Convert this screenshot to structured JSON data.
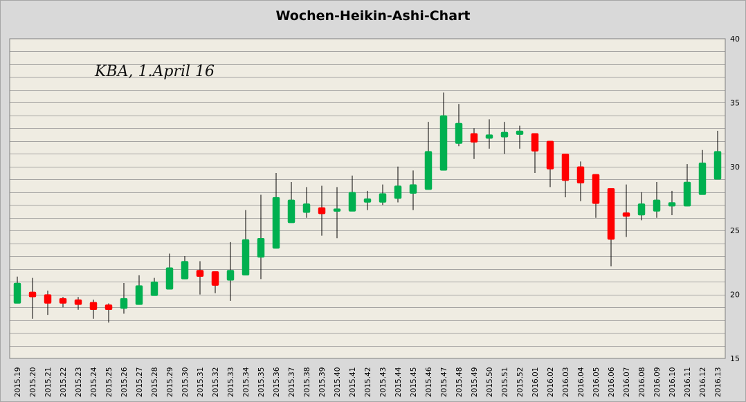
{
  "chart_data": {
    "type": "candlestick",
    "title": "Wochen-Heikin-Ashi-Chart",
    "annotation": "KBA, 1.April 16",
    "ylim": [
      15,
      40
    ],
    "y_ticks": [
      15,
      20,
      25,
      30,
      35,
      40
    ],
    "y_axis_side": "right",
    "grid": true,
    "colors": {
      "up": "#00b050",
      "down": "#ff0000",
      "plot_bg": "#efece2",
      "outer_bg": "#d9d9d9",
      "grid": "#8c8c8c"
    },
    "tick_labels": [
      "2015.19",
      "2015.20",
      "2015.21",
      "2015.22",
      "2015.23",
      "2015.24",
      "2015.25",
      "2015.26",
      "2015.27",
      "2015.28",
      "2015.29",
      "2015.30",
      "2015.31",
      "2015.32",
      "2015.33",
      "2015.34",
      "2015.35",
      "2015.36",
      "2015.37",
      "2015.38",
      "2015.39",
      "2015.40",
      "2015.41",
      "2015.42",
      "2015.43",
      "2015.44",
      "2015.45",
      "2015.46",
      "2015.47",
      "2015.48",
      "2015.49",
      "2015.50",
      "2015.51",
      "2015.52",
      "2016.01",
      "2016.02",
      "2016.03",
      "2016.04",
      "2016.05",
      "2016.06",
      "2016.07",
      "2016.08",
      "2016.09",
      "2016.10",
      "2016.11",
      "2016.12",
      "2016.13"
    ],
    "candles": [
      {
        "open": 19.3,
        "close": 20.9,
        "high": 21.4,
        "low": 19.3
      },
      {
        "open": 20.2,
        "close": 19.8,
        "high": 21.3,
        "low": 18.1
      },
      {
        "open": 20.0,
        "close": 19.3,
        "high": 20.3,
        "low": 18.4
      },
      {
        "open": 19.7,
        "close": 19.3,
        "high": 19.8,
        "low": 19.0
      },
      {
        "open": 19.6,
        "close": 19.2,
        "high": 19.8,
        "low": 18.8
      },
      {
        "open": 19.4,
        "close": 18.8,
        "high": 19.6,
        "low": 18.1
      },
      {
        "open": 19.2,
        "close": 18.8,
        "high": 19.3,
        "low": 17.8
      },
      {
        "open": 18.9,
        "close": 19.7,
        "high": 20.9,
        "low": 18.5
      },
      {
        "open": 19.2,
        "close": 20.7,
        "high": 21.5,
        "low": 19.2
      },
      {
        "open": 19.9,
        "close": 21.0,
        "high": 21.3,
        "low": 19.9
      },
      {
        "open": 20.4,
        "close": 22.1,
        "high": 23.2,
        "low": 20.4
      },
      {
        "open": 21.2,
        "close": 22.6,
        "high": 23.0,
        "low": 21.2
      },
      {
        "open": 21.9,
        "close": 21.4,
        "high": 22.6,
        "low": 20.0
      },
      {
        "open": 21.8,
        "close": 20.7,
        "high": 21.8,
        "low": 20.1
      },
      {
        "open": 21.1,
        "close": 21.9,
        "high": 24.1,
        "low": 19.5
      },
      {
        "open": 21.5,
        "close": 24.3,
        "high": 26.6,
        "low": 21.5
      },
      {
        "open": 22.9,
        "close": 24.4,
        "high": 27.8,
        "low": 21.2
      },
      {
        "open": 23.6,
        "close": 27.6,
        "high": 29.5,
        "low": 23.6
      },
      {
        "open": 25.6,
        "close": 27.4,
        "high": 28.8,
        "low": 25.6
      },
      {
        "open": 26.4,
        "close": 27.1,
        "high": 28.4,
        "low": 26.0
      },
      {
        "open": 26.8,
        "close": 26.3,
        "high": 28.5,
        "low": 24.6
      },
      {
        "open": 26.5,
        "close": 26.7,
        "high": 28.4,
        "low": 24.4
      },
      {
        "open": 26.5,
        "close": 28.0,
        "high": 29.3,
        "low": 26.5
      },
      {
        "open": 27.2,
        "close": 27.5,
        "high": 28.1,
        "low": 26.6
      },
      {
        "open": 27.2,
        "close": 27.9,
        "high": 28.6,
        "low": 27.0
      },
      {
        "open": 27.5,
        "close": 28.5,
        "high": 30.0,
        "low": 27.2
      },
      {
        "open": 27.9,
        "close": 28.6,
        "high": 29.7,
        "low": 26.6
      },
      {
        "open": 28.2,
        "close": 31.2,
        "high": 33.5,
        "low": 28.2
      },
      {
        "open": 29.7,
        "close": 34.0,
        "high": 35.8,
        "low": 29.7
      },
      {
        "open": 31.8,
        "close": 33.4,
        "high": 34.9,
        "low": 31.6
      },
      {
        "open": 32.6,
        "close": 31.9,
        "high": 33.0,
        "low": 30.6
      },
      {
        "open": 32.2,
        "close": 32.5,
        "high": 33.7,
        "low": 31.4
      },
      {
        "open": 32.3,
        "close": 32.7,
        "high": 33.5,
        "low": 31.0
      },
      {
        "open": 32.5,
        "close": 32.8,
        "high": 33.2,
        "low": 31.4
      },
      {
        "open": 32.6,
        "close": 31.2,
        "high": 32.6,
        "low": 29.5
      },
      {
        "open": 32.0,
        "close": 29.8,
        "high": 32.0,
        "low": 28.4
      },
      {
        "open": 31.0,
        "close": 28.9,
        "high": 31.0,
        "low": 27.6
      },
      {
        "open": 30.0,
        "close": 28.7,
        "high": 30.4,
        "low": 27.3
      },
      {
        "open": 29.4,
        "close": 27.1,
        "high": 29.4,
        "low": 26.0
      },
      {
        "open": 28.3,
        "close": 24.3,
        "high": 28.3,
        "low": 22.2
      },
      {
        "open": 26.4,
        "close": 26.1,
        "high": 28.6,
        "low": 24.5
      },
      {
        "open": 26.2,
        "close": 27.1,
        "high": 28.0,
        "low": 25.8
      },
      {
        "open": 26.5,
        "close": 27.4,
        "high": 28.8,
        "low": 26.0
      },
      {
        "open": 26.9,
        "close": 27.2,
        "high": 28.1,
        "low": 26.2
      },
      {
        "open": 26.9,
        "close": 28.8,
        "high": 30.2,
        "low": 26.9
      },
      {
        "open": 27.8,
        "close": 30.3,
        "high": 31.3,
        "low": 27.8
      },
      {
        "open": 29.0,
        "close": 31.2,
        "high": 32.8,
        "low": 29.0
      }
    ]
  }
}
